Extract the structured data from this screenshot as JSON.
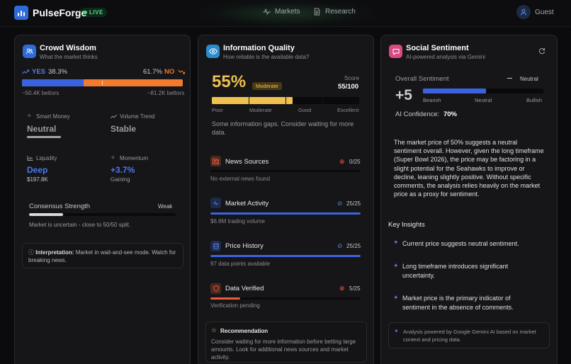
{
  "header": {
    "brand": "PulseForge",
    "live_label": "LIVE",
    "nav": [
      {
        "label": "Markets",
        "icon": "activity-icon"
      },
      {
        "label": "Research",
        "icon": "document-icon"
      }
    ],
    "user_label": "Guest"
  },
  "crowd": {
    "title": "Crowd Wisdom",
    "subtitle": "What the market thinks",
    "yes_label": "YES",
    "yes_pct": "38.3%",
    "yes_fraction": 0.383,
    "no_pct": "61.7%",
    "no_label": "NO",
    "yes_bettors": "~50.4K bettors",
    "no_bettors": "~81.2K bettors",
    "smart_money_label": "Smart Money",
    "smart_money_value": "Neutral",
    "volume_trend_label": "Volume Trend",
    "volume_trend_value": "Stable",
    "liquidity_label": "Liquidity",
    "liquidity_value": "Deep",
    "liquidity_amount": "$197.8K",
    "momentum_label": "Momentum",
    "momentum_value": "+3.7%",
    "momentum_note": "Gaining",
    "consensus_label": "Consensus Strength",
    "consensus_value": "Weak",
    "consensus_fraction": 0.23,
    "consensus_note": "Market is uncertain - close to 50/50 split.",
    "interpretation_label": "Interpretation:",
    "interpretation_text": "Market in wait-and-see mode. Watch for breaking news."
  },
  "quality": {
    "title": "Information Quality",
    "subtitle": "How reliable is the available data?",
    "score_pct": "55%",
    "badge": "Moderate",
    "score_label": "Score",
    "score_value": "55/100",
    "score_fraction": 0.55,
    "scale": [
      "Poor",
      "Moderate",
      "Good",
      "Excellent"
    ],
    "gap_note": "Some information gaps. Consider waiting for more data.",
    "rows": [
      {
        "name": "News Sources",
        "score": "0/25",
        "fraction": 0.0,
        "note": "No external news found",
        "status": "x"
      },
      {
        "name": "Market Activity",
        "score": "25/25",
        "fraction": 1.0,
        "note": "$6.6M trading volume",
        "status": "check"
      },
      {
        "name": "Price History",
        "score": "25/25",
        "fraction": 1.0,
        "note": "97 data points available",
        "status": "check"
      },
      {
        "name": "Data Verified",
        "score": "5/25",
        "fraction": 0.2,
        "note": "Verification pending",
        "status": "x"
      }
    ],
    "recommendation_title": "Recommendation",
    "recommendation_text": "Consider waiting for more information before betting large amounts. Look for additional news sources and market activity."
  },
  "sentiment": {
    "title": "Social Sentiment",
    "subtitle": "AI-powered analysis via Gemini",
    "overall_label": "Overall Sentiment",
    "overall_value": "Neutral",
    "score": "+5",
    "score_fraction": 0.525,
    "scale": [
      "Bearish",
      "Neutral",
      "Bullish"
    ],
    "confidence_label": "AI Confidence:",
    "confidence_value": "70%",
    "analysis": "The market price of 50% suggests a neutral sentiment overall. However, given the long timeframe (Super Bowl 2026), the price may be factoring in a slight potential for the Seahawks to improve or decline, leaning slightly positive. Without specific comments, the analysis relies heavily on the market price as a proxy for sentiment.",
    "insights_title": "Key Insights",
    "insights": [
      "Current price suggests neutral sentiment.",
      "Long timeframe introduces significant uncertainty.",
      "Market price is the primary indicator of sentiment in the absence of comments."
    ],
    "footer_note": "Analysis powered by Google Gemini AI based on market context and pricing data."
  },
  "colors": {
    "blue": "#3b63e0",
    "orange": "#f07a2e",
    "yellow": "#f0c050",
    "red": "#ec5a3a"
  }
}
